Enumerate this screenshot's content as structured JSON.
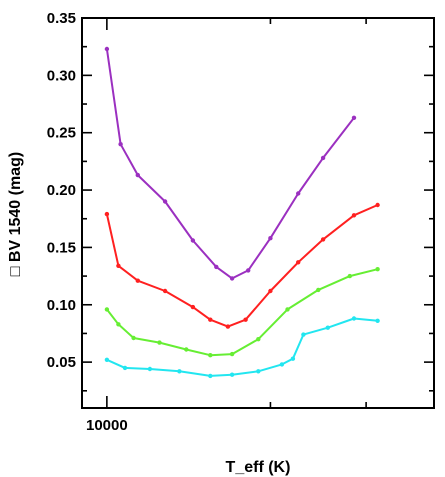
{
  "chart_data": {
    "type": "line",
    "xlabel": "T_eff (K)",
    "ylabel": "□ BV 1540 (mag)",
    "xscale": "log",
    "xlim": [
      9000,
      40000
    ],
    "ylim": [
      0.01,
      0.35
    ],
    "x_ticks": [
      {
        "value": 10000,
        "label": "10000"
      }
    ],
    "y_ticks": [
      {
        "value": 0.05,
        "label": "0.05"
      },
      {
        "value": 0.1,
        "label": "0.10"
      },
      {
        "value": 0.15,
        "label": "0.15"
      },
      {
        "value": 0.2,
        "label": "0.20"
      },
      {
        "value": 0.25,
        "label": "0.25"
      },
      {
        "value": 0.3,
        "label": "0.30"
      },
      {
        "value": 0.35,
        "label": "0.35"
      }
    ],
    "grid": false,
    "series": [
      {
        "color": "#9b30c0",
        "points": [
          [
            10000,
            0.323
          ],
          [
            10600,
            0.24
          ],
          [
            11400,
            0.213
          ],
          [
            12800,
            0.19
          ],
          [
            14400,
            0.156
          ],
          [
            15900,
            0.133
          ],
          [
            17000,
            0.123
          ],
          [
            18200,
            0.13
          ],
          [
            20000,
            0.158
          ],
          [
            22500,
            0.197
          ],
          [
            25000,
            0.228
          ],
          [
            28500,
            0.263
          ]
        ]
      },
      {
        "color": "#ff2020",
        "points": [
          [
            10000,
            0.179
          ],
          [
            10500,
            0.134
          ],
          [
            11400,
            0.121
          ],
          [
            12800,
            0.112
          ],
          [
            14400,
            0.098
          ],
          [
            15500,
            0.087
          ],
          [
            16700,
            0.081
          ],
          [
            18000,
            0.087
          ],
          [
            20000,
            0.112
          ],
          [
            22500,
            0.137
          ],
          [
            25000,
            0.157
          ],
          [
            28500,
            0.178
          ],
          [
            31500,
            0.187
          ]
        ]
      },
      {
        "color": "#66ee33",
        "points": [
          [
            10000,
            0.096
          ],
          [
            10500,
            0.083
          ],
          [
            11200,
            0.071
          ],
          [
            12500,
            0.067
          ],
          [
            14000,
            0.061
          ],
          [
            15500,
            0.056
          ],
          [
            17000,
            0.057
          ],
          [
            19000,
            0.07
          ],
          [
            21500,
            0.096
          ],
          [
            24500,
            0.113
          ],
          [
            28000,
            0.125
          ],
          [
            31500,
            0.131
          ]
        ]
      },
      {
        "color": "#22e6f0",
        "points": [
          [
            10000,
            0.052
          ],
          [
            10800,
            0.045
          ],
          [
            12000,
            0.044
          ],
          [
            13600,
            0.042
          ],
          [
            15500,
            0.038
          ],
          [
            17000,
            0.039
          ],
          [
            19000,
            0.042
          ],
          [
            21000,
            0.048
          ],
          [
            22000,
            0.053
          ],
          [
            23000,
            0.074
          ],
          [
            25500,
            0.08
          ],
          [
            28500,
            0.088
          ],
          [
            31500,
            0.086
          ]
        ]
      }
    ]
  }
}
